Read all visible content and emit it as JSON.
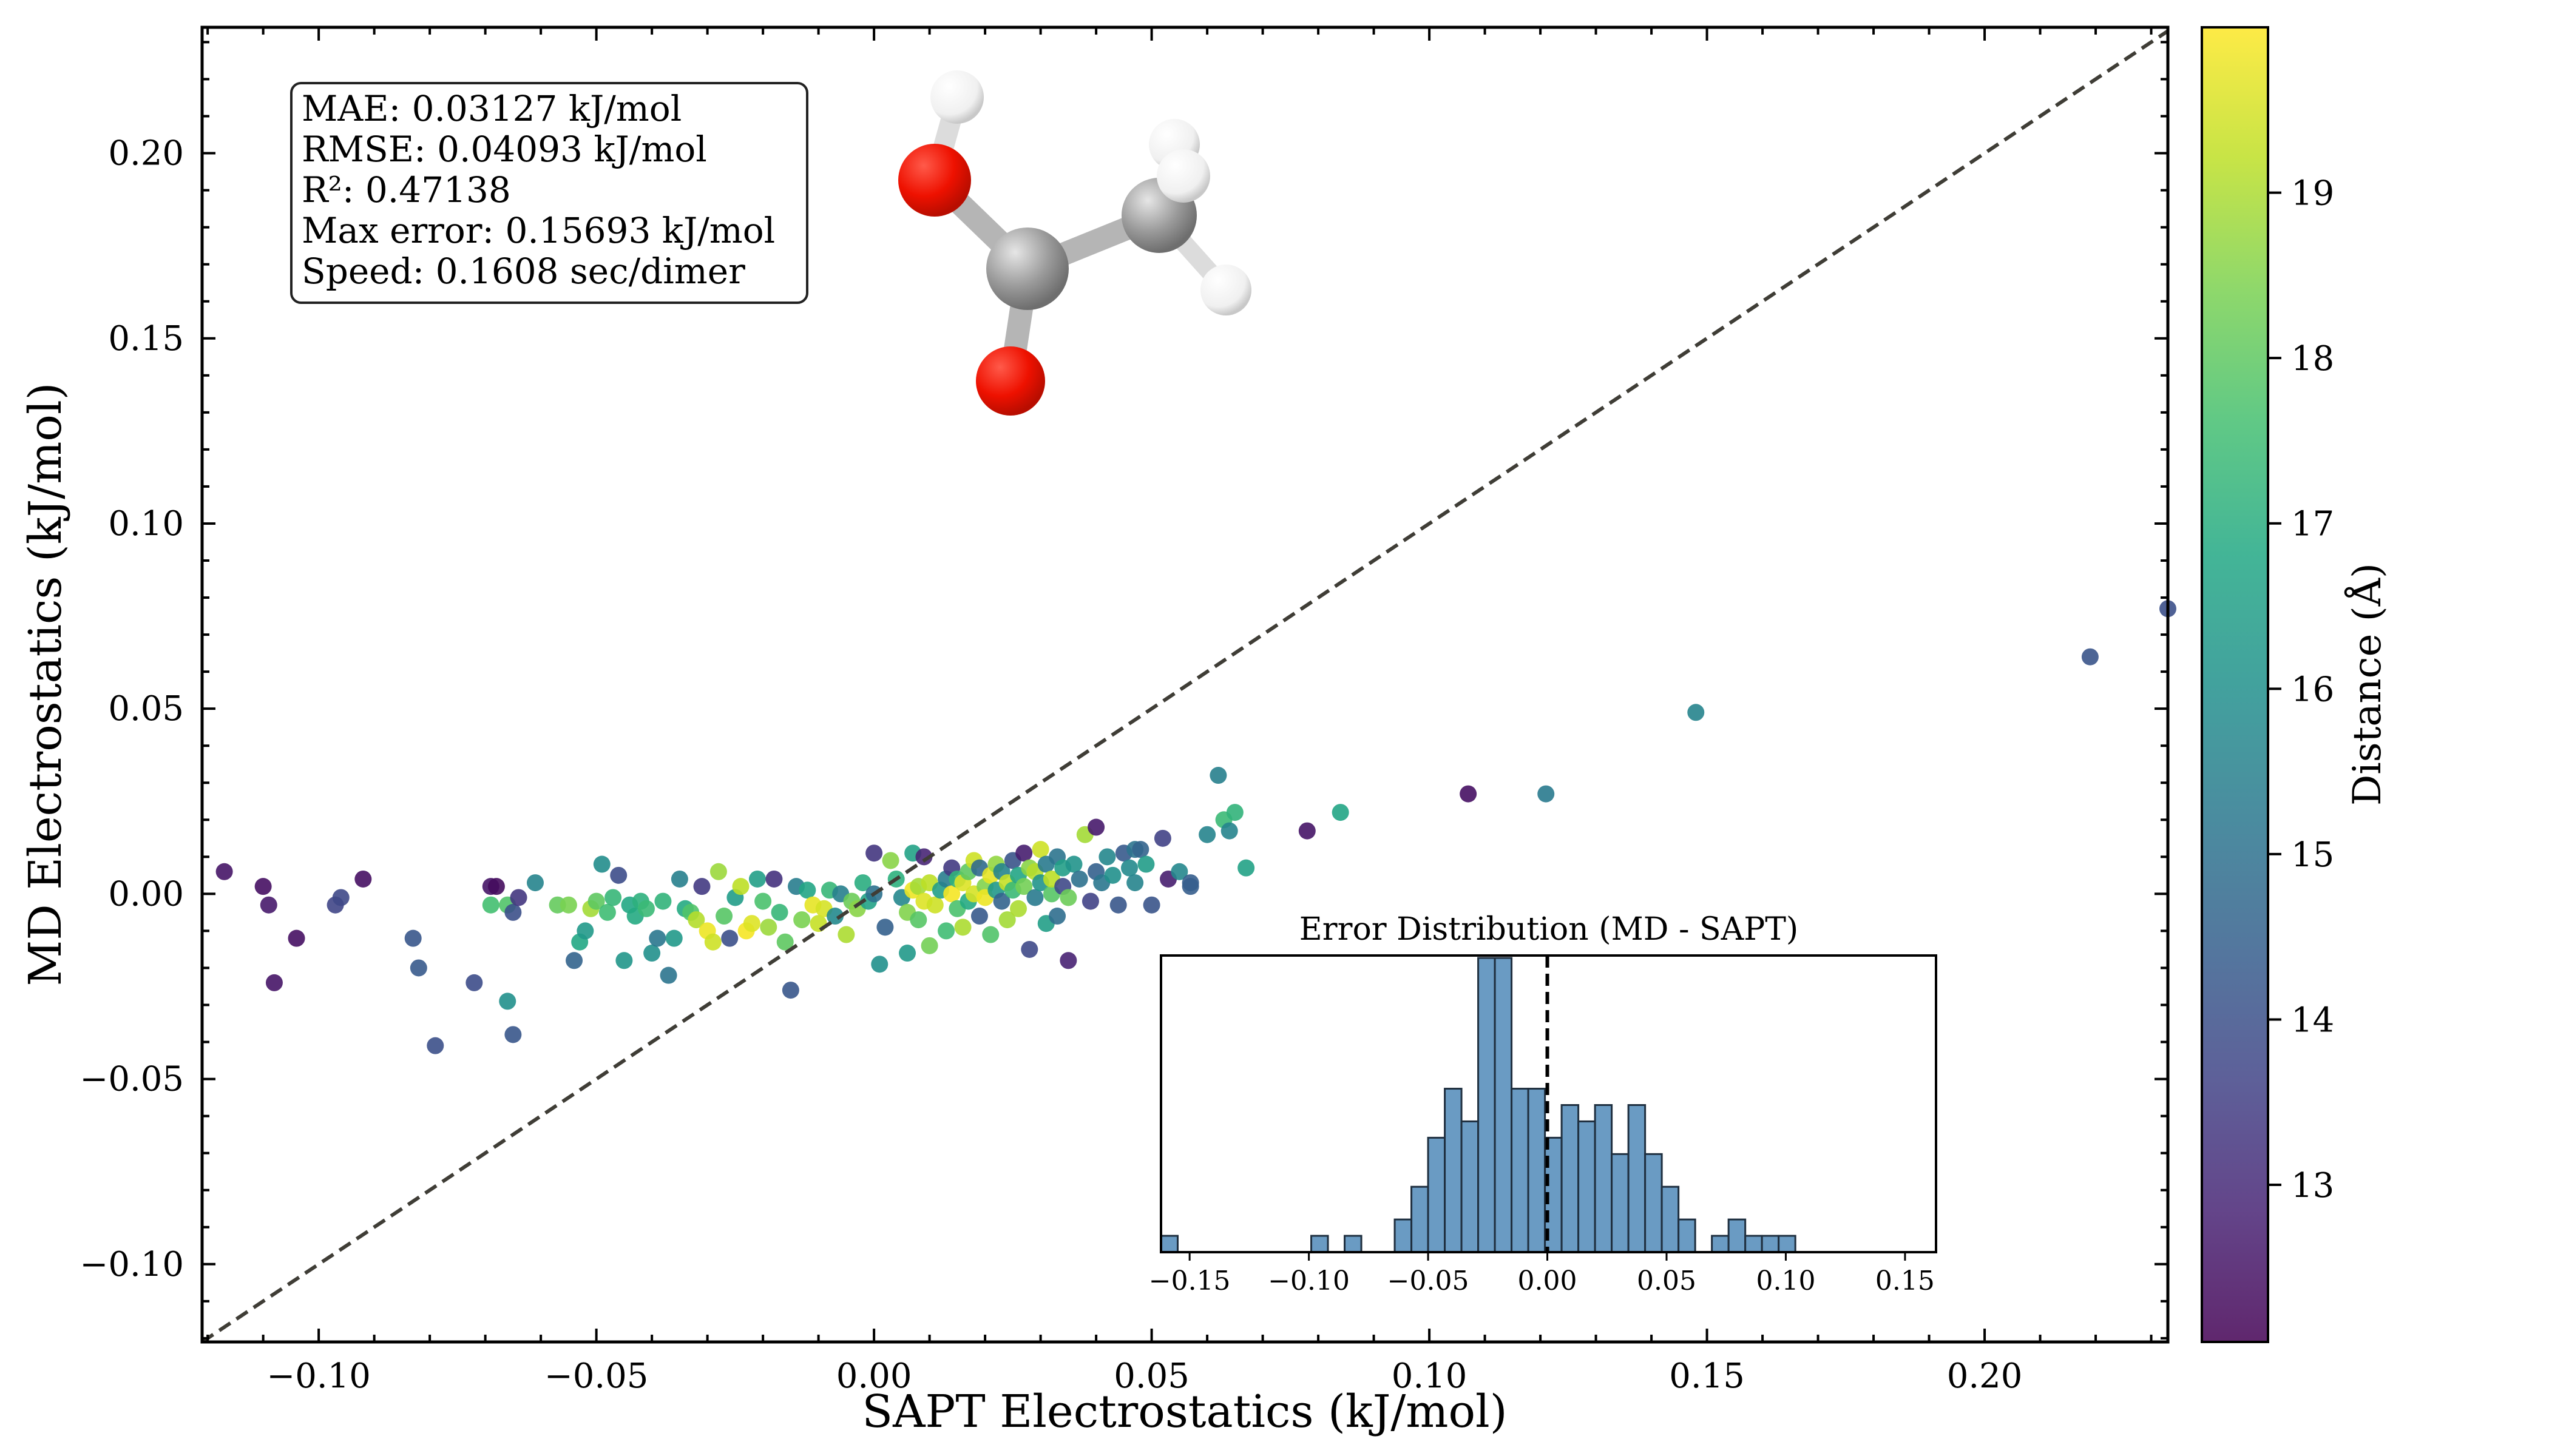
{
  "chart_data": [
    {
      "type": "scatter",
      "xlabel": "SAPT Electrostatics (kJ/mol)",
      "ylabel": "MD Electrostatics (kJ/mol)",
      "xlim": [
        -0.121,
        0.233
      ],
      "ylim": [
        -0.121,
        0.234
      ],
      "x_ticks": [
        -0.1,
        -0.05,
        0.0,
        0.05,
        0.1,
        0.15,
        0.2
      ],
      "x_tick_labels": [
        "−0.10",
        "−0.05",
        "0.00",
        "0.05",
        "0.10",
        "0.15",
        "0.20"
      ],
      "y_ticks": [
        -0.1,
        -0.05,
        0.0,
        0.05,
        0.1,
        0.15,
        0.2
      ],
      "y_tick_labels": [
        "−0.10",
        "−0.05",
        "0.00",
        "0.05",
        "0.10",
        "0.15",
        "0.20"
      ],
      "reference_line": "y = x (dashed)",
      "colormap": "viridis",
      "color_variable": "Distance (Å)",
      "colorbar": {
        "label": "Distance (Å)",
        "range": [
          12.05,
          20.0
        ],
        "ticks": [
          13,
          14,
          15,
          16,
          17,
          18,
          19
        ],
        "tick_labels": [
          "13",
          "14",
          "15",
          "16",
          "17",
          "18",
          "19"
        ]
      },
      "stats_box": [
        "MAE: 0.03127 kJ/mol",
        "RMSE: 0.04093 kJ/mol",
        "R²: 0.47138",
        "Max error: 0.15693 kJ/mol",
        "Speed: 0.1608 sec/dimer"
      ],
      "points": [
        [
          -0.117,
          0.006,
          12.5
        ],
        [
          -0.11,
          0.002,
          12.4
        ],
        [
          -0.109,
          -0.003,
          12.6
        ],
        [
          -0.108,
          -0.024,
          12.5
        ],
        [
          -0.104,
          -0.012,
          12.4
        ],
        [
          -0.097,
          -0.003,
          13.7
        ],
        [
          -0.096,
          -0.001,
          13.8
        ],
        [
          -0.092,
          0.004,
          12.4
        ],
        [
          -0.083,
          -0.012,
          14.2
        ],
        [
          -0.082,
          -0.02,
          14.3
        ],
        [
          -0.079,
          -0.041,
          14.0
        ],
        [
          -0.072,
          -0.024,
          13.9
        ],
        [
          -0.069,
          0.002,
          12.5
        ],
        [
          -0.068,
          0.002,
          12.3
        ],
        [
          -0.069,
          -0.003,
          17.6
        ],
        [
          -0.066,
          -0.029,
          16.0
        ],
        [
          -0.065,
          -0.038,
          14.2
        ],
        [
          -0.066,
          -0.003,
          17.8
        ],
        [
          -0.065,
          -0.005,
          14.0
        ],
        [
          -0.064,
          -0.001,
          13.3
        ],
        [
          -0.061,
          0.003,
          15.6
        ],
        [
          -0.057,
          -0.003,
          18.1
        ],
        [
          -0.055,
          -0.003,
          18.4
        ],
        [
          -0.054,
          -0.018,
          14.6
        ],
        [
          -0.053,
          -0.013,
          16.8
        ],
        [
          -0.052,
          -0.01,
          16.3
        ],
        [
          -0.051,
          -0.004,
          18.9
        ],
        [
          -0.05,
          -0.002,
          18.0
        ],
        [
          -0.049,
          0.008,
          15.9
        ],
        [
          -0.048,
          -0.005,
          17.5
        ],
        [
          -0.047,
          -0.001,
          17.3
        ],
        [
          -0.046,
          0.005,
          13.9
        ],
        [
          -0.045,
          -0.018,
          16.2
        ],
        [
          -0.044,
          -0.003,
          16.8
        ],
        [
          -0.043,
          -0.006,
          16.9
        ],
        [
          -0.042,
          -0.002,
          17.1
        ],
        [
          -0.041,
          -0.004,
          17.4
        ],
        [
          -0.04,
          -0.016,
          16.0
        ],
        [
          -0.039,
          -0.012,
          15.2
        ],
        [
          -0.038,
          -0.002,
          17.2
        ],
        [
          -0.037,
          -0.022,
          15.1
        ],
        [
          -0.036,
          -0.012,
          16.3
        ],
        [
          -0.035,
          0.004,
          15.5
        ],
        [
          -0.034,
          -0.004,
          16.9
        ],
        [
          -0.033,
          -0.005,
          17.8
        ],
        [
          -0.032,
          -0.007,
          19.1
        ],
        [
          -0.031,
          0.002,
          13.4
        ],
        [
          -0.03,
          -0.01,
          19.8
        ],
        [
          -0.029,
          -0.013,
          19.4
        ],
        [
          -0.028,
          0.006,
          18.8
        ],
        [
          -0.027,
          -0.006,
          17.9
        ],
        [
          -0.026,
          -0.012,
          14.0
        ],
        [
          -0.025,
          -0.001,
          16.4
        ],
        [
          -0.024,
          0.002,
          19.2
        ],
        [
          -0.023,
          -0.01,
          19.9
        ],
        [
          -0.022,
          -0.008,
          19.6
        ],
        [
          -0.021,
          0.004,
          16.5
        ],
        [
          -0.02,
          -0.002,
          17.7
        ],
        [
          -0.019,
          -0.009,
          18.8
        ],
        [
          -0.018,
          0.004,
          13.2
        ],
        [
          -0.017,
          -0.005,
          17.3
        ],
        [
          -0.016,
          -0.013,
          18.0
        ],
        [
          -0.015,
          -0.026,
          14.2
        ],
        [
          -0.014,
          0.002,
          15.4
        ],
        [
          -0.013,
          -0.007,
          18.4
        ],
        [
          -0.012,
          0.001,
          16.7
        ],
        [
          -0.011,
          -0.003,
          19.7
        ],
        [
          -0.01,
          -0.008,
          19.3
        ],
        [
          -0.009,
          -0.004,
          19.5
        ],
        [
          -0.008,
          0.001,
          17.3
        ],
        [
          -0.007,
          -0.006,
          15.8
        ],
        [
          -0.006,
          0.0,
          15.5
        ],
        [
          -0.005,
          -0.011,
          19.0
        ],
        [
          -0.004,
          -0.002,
          18.2
        ],
        [
          -0.003,
          -0.004,
          18.6
        ],
        [
          -0.002,
          0.003,
          17.0
        ],
        [
          -0.001,
          -0.002,
          16.6
        ],
        [
          0.0,
          0.011,
          13.3
        ],
        [
          0.0,
          0.0,
          15.0
        ],
        [
          0.001,
          -0.019,
          16.0
        ],
        [
          0.002,
          -0.009,
          14.5
        ],
        [
          0.003,
          0.009,
          18.6
        ],
        [
          0.004,
          0.004,
          17.1
        ],
        [
          0.005,
          -0.001,
          15.7
        ],
        [
          0.006,
          -0.005,
          18.5
        ],
        [
          0.006,
          -0.016,
          16.3
        ],
        [
          0.007,
          0.001,
          19.8
        ],
        [
          0.007,
          0.011,
          16.6
        ],
        [
          0.008,
          0.002,
          18.9
        ],
        [
          0.008,
          -0.007,
          17.9
        ],
        [
          0.009,
          0.01,
          12.9
        ],
        [
          0.009,
          -0.002,
          19.6
        ],
        [
          0.01,
          -0.014,
          18.3
        ],
        [
          0.01,
          0.003,
          19.2
        ],
        [
          0.011,
          -0.003,
          19.4
        ],
        [
          0.012,
          0.001,
          16.5
        ],
        [
          0.013,
          0.004,
          15.4
        ],
        [
          0.013,
          -0.01,
          17.5
        ],
        [
          0.014,
          0.007,
          13.4
        ],
        [
          0.014,
          0.0,
          19.9
        ],
        [
          0.015,
          -0.004,
          17.7
        ],
        [
          0.015,
          0.004,
          17.2
        ],
        [
          0.016,
          -0.009,
          19.0
        ],
        [
          0.016,
          0.003,
          19.6
        ],
        [
          0.017,
          0.006,
          18.0
        ],
        [
          0.017,
          -0.002,
          16.9
        ],
        [
          0.018,
          0.009,
          19.4
        ],
        [
          0.018,
          0.0,
          19.5
        ],
        [
          0.019,
          -0.006,
          14.3
        ],
        [
          0.019,
          0.007,
          14.8
        ],
        [
          0.02,
          0.002,
          18.5
        ],
        [
          0.02,
          -0.001,
          19.8
        ],
        [
          0.021,
          0.005,
          19.7
        ],
        [
          0.021,
          -0.011,
          17.8
        ],
        [
          0.022,
          0.008,
          18.7
        ],
        [
          0.022,
          0.001,
          16.3
        ],
        [
          0.023,
          -0.002,
          14.6
        ],
        [
          0.023,
          0.006,
          15.6
        ],
        [
          0.024,
          0.003,
          19.3
        ],
        [
          0.024,
          -0.007,
          18.9
        ],
        [
          0.025,
          0.009,
          14.1
        ],
        [
          0.025,
          0.001,
          17.4
        ],
        [
          0.026,
          0.005,
          16.7
        ],
        [
          0.026,
          -0.004,
          19.0
        ],
        [
          0.027,
          0.002,
          18.3
        ],
        [
          0.027,
          0.011,
          12.7
        ],
        [
          0.028,
          -0.015,
          13.8
        ],
        [
          0.028,
          0.007,
          18.6
        ],
        [
          0.029,
          -0.001,
          15.3
        ],
        [
          0.029,
          0.006,
          19.1
        ],
        [
          0.03,
          0.003,
          16.1
        ],
        [
          0.03,
          0.012,
          19.4
        ],
        [
          0.031,
          -0.008,
          16.5
        ],
        [
          0.031,
          0.008,
          15.3
        ],
        [
          0.032,
          0.0,
          17.9
        ],
        [
          0.032,
          0.004,
          19.2
        ],
        [
          0.033,
          -0.006,
          14.9
        ],
        [
          0.033,
          0.01,
          15.1
        ],
        [
          0.034,
          0.002,
          13.8
        ],
        [
          0.034,
          0.007,
          16.5
        ],
        [
          0.035,
          -0.018,
          12.8
        ],
        [
          0.035,
          -0.001,
          18.2
        ],
        [
          0.036,
          0.008,
          16.1
        ],
        [
          0.037,
          0.004,
          15.0
        ],
        [
          0.038,
          0.016,
          18.9
        ],
        [
          0.039,
          -0.002,
          13.6
        ],
        [
          0.04,
          0.006,
          14.5
        ],
        [
          0.04,
          0.018,
          12.6
        ],
        [
          0.041,
          0.003,
          15.2
        ],
        [
          0.042,
          0.01,
          15.7
        ],
        [
          0.043,
          0.005,
          16.0
        ],
        [
          0.044,
          -0.003,
          14.2
        ],
        [
          0.045,
          0.011,
          14.3
        ],
        [
          0.046,
          0.007,
          15.8
        ],
        [
          0.047,
          0.012,
          15.1
        ],
        [
          0.047,
          0.003,
          15.6
        ],
        [
          0.048,
          0.012,
          14.6
        ],
        [
          0.049,
          0.008,
          16.4
        ],
        [
          0.05,
          -0.003,
          14.1
        ],
        [
          0.052,
          0.015,
          13.6
        ],
        [
          0.053,
          0.004,
          12.7
        ],
        [
          0.055,
          0.006,
          15.7
        ],
        [
          0.057,
          0.003,
          14.4
        ],
        [
          0.057,
          0.002,
          14.4
        ],
        [
          0.06,
          0.016,
          15.6
        ],
        [
          0.062,
          0.032,
          15.5
        ],
        [
          0.063,
          0.02,
          17.4
        ],
        [
          0.064,
          0.017,
          15.6
        ],
        [
          0.065,
          0.022,
          17.2
        ],
        [
          0.067,
          0.007,
          16.6
        ],
        [
          0.078,
          0.017,
          12.5
        ],
        [
          0.084,
          0.022,
          16.7
        ],
        [
          0.107,
          0.027,
          12.4
        ],
        [
          0.121,
          0.027,
          15.3
        ],
        [
          0.148,
          0.049,
          15.6
        ],
        [
          0.219,
          0.064,
          14.1
        ],
        [
          0.233,
          0.077,
          14.0
        ]
      ]
    },
    {
      "type": "histogram",
      "title": "Error Distribution (MD - SAPT)",
      "xlim": [
        -0.162,
        0.163
      ],
      "x_ticks": [
        -0.15,
        -0.1,
        -0.05,
        0.0,
        0.05,
        0.1,
        0.15
      ],
      "x_tick_labels": [
        "−0.15",
        "−0.10",
        "−0.05",
        "0.00",
        "0.05",
        "0.10",
        "0.15"
      ],
      "reference_line_x": 0.0,
      "bin_start": -0.162,
      "bin_width": 0.007,
      "counts": [
        1,
        0,
        0,
        0,
        0,
        0,
        0,
        0,
        0,
        1,
        0,
        1,
        0,
        0,
        2,
        4,
        7,
        10,
        8,
        18,
        18,
        10,
        10,
        7,
        9,
        8,
        9,
        6,
        9,
        6,
        4,
        2,
        0,
        1,
        2,
        1,
        1,
        1
      ],
      "bar_color": "#6a9bc3"
    }
  ]
}
